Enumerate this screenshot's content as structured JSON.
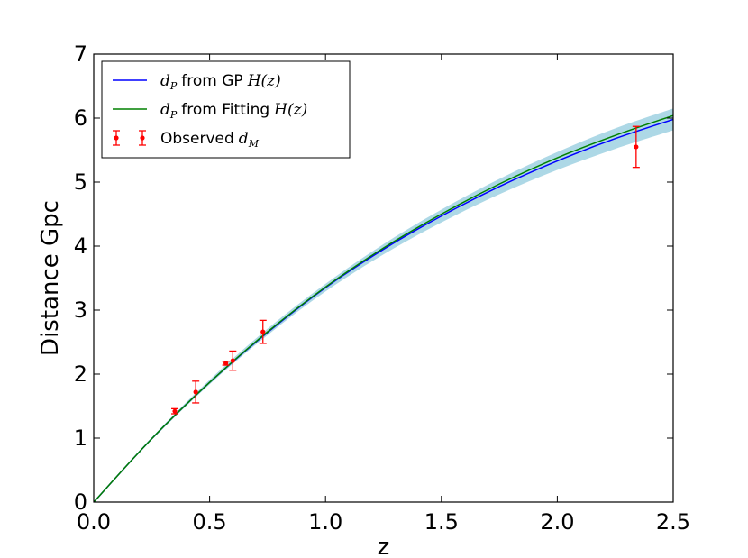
{
  "chart_data": {
    "type": "line",
    "title": "",
    "xlabel": "z",
    "ylabel": "Distance Gpc",
    "xlim": [
      0,
      2.5
    ],
    "ylim": [
      0,
      7
    ],
    "x_ticks": [
      "0.0",
      "0.5",
      "1.0",
      "1.5",
      "2.0",
      "2.5"
    ],
    "y_ticks": [
      "0",
      "1",
      "2",
      "3",
      "4",
      "5",
      "6",
      "7"
    ],
    "grid": false,
    "legend_position": "top-left",
    "colors": {
      "gp": "#0000ff",
      "fit": "#008000",
      "band": "#add8e6",
      "obs": "#ff0000"
    },
    "series": [
      {
        "name": "d_P from GP H(z)",
        "legend_text": "from GP",
        "legend_sym": "d",
        "legend_sub": "P",
        "legend_math": "H(z)",
        "color": "#0000ff",
        "x": [
          0,
          0.25,
          0.5,
          0.75,
          1.0,
          1.25,
          1.5,
          1.75,
          2.0,
          2.25,
          2.5
        ],
        "y": [
          0,
          0.99,
          1.87,
          2.65,
          3.35,
          3.95,
          4.47,
          4.93,
          5.33,
          5.68,
          5.98
        ],
        "band_lower": [
          0,
          0.97,
          1.84,
          2.61,
          3.29,
          3.87,
          4.37,
          4.81,
          5.19,
          5.52,
          5.81
        ],
        "band_upper": [
          0,
          1.01,
          1.91,
          2.71,
          3.41,
          4.03,
          4.57,
          5.05,
          5.47,
          5.84,
          6.15
        ]
      },
      {
        "name": "d_P from Fitting H(z)",
        "legend_text": "from Fitting",
        "legend_sym": "d",
        "legend_sub": "P",
        "legend_math": "H(z)",
        "color": "#008000",
        "x": [
          0,
          0.25,
          0.5,
          0.75,
          1.0,
          1.25,
          1.5,
          1.75,
          2.0,
          2.25,
          2.5
        ],
        "y": [
          0,
          0.99,
          1.87,
          2.66,
          3.36,
          3.97,
          4.5,
          4.97,
          5.38,
          5.73,
          6.04
        ]
      }
    ],
    "observed": {
      "name": "Observed d_M",
      "legend_text": "Observed",
      "legend_sym": "d",
      "legend_sub": "M",
      "color": "#ff0000",
      "points": [
        {
          "x": 0.35,
          "y": 1.42,
          "err": 0.04
        },
        {
          "x": 0.44,
          "y": 1.72,
          "err": 0.17
        },
        {
          "x": 0.57,
          "y": 2.17,
          "err": 0.03
        },
        {
          "x": 0.6,
          "y": 2.21,
          "err": 0.15
        },
        {
          "x": 0.73,
          "y": 2.66,
          "err": 0.18
        },
        {
          "x": 2.34,
          "y": 5.55,
          "err": 0.32
        }
      ]
    }
  }
}
